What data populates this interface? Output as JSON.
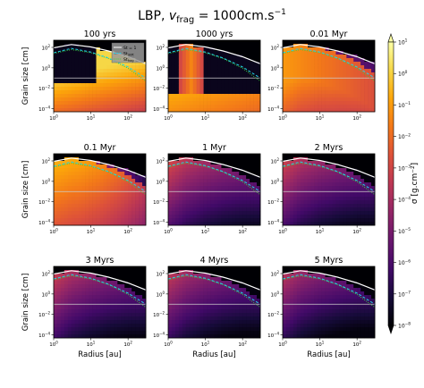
{
  "figure": {
    "suptitle_prefix": "LBP, ",
    "suptitle_sym": "v",
    "suptitle_sub": "frag",
    "suptitle_eq": " = 1000cm.s",
    "suptitle_sup": "−1",
    "ylabel": "Grain size [cm]",
    "xlabel": "Radius [au]"
  },
  "colorbar": {
    "label": "σ [g.cm⁻²]",
    "scale": "log",
    "range": [
      1e-08,
      10
    ],
    "colormap": "inferno",
    "ticks": [
      {
        "base": "10",
        "exp": "1"
      },
      {
        "base": "10",
        "exp": "0"
      },
      {
        "base": "10",
        "exp": "−1"
      },
      {
        "base": "10",
        "exp": "−2"
      },
      {
        "base": "10",
        "exp": "−3"
      },
      {
        "base": "10",
        "exp": "−4"
      },
      {
        "base": "10",
        "exp": "−5"
      },
      {
        "base": "10",
        "exp": "−6"
      },
      {
        "base": "10",
        "exp": "−7"
      },
      {
        "base": "10",
        "exp": "−8"
      }
    ]
  },
  "axes": {
    "xscale": "log",
    "yscale": "log",
    "xlim": [
      1,
      300
    ],
    "ylim": [
      5e-05,
      500
    ],
    "xticks": [
      {
        "base": "10",
        "exp": "0"
      },
      {
        "base": "10",
        "exp": "1"
      },
      {
        "base": "10",
        "exp": "2"
      }
    ],
    "yticks": [
      {
        "base": "10",
        "exp": "2"
      },
      {
        "base": "10",
        "exp": "0"
      },
      {
        "base": "10",
        "exp": "−2"
      },
      {
        "base": "10",
        "exp": "−4"
      }
    ],
    "ytick_values": [
      100,
      1,
      0.01,
      0.0001
    ],
    "xtick_values": [
      1,
      10,
      100
    ]
  },
  "legend": {
    "placement": "upper-right of first panel",
    "entries": [
      {
        "label_base": "St",
        "label_sub": "",
        "label_rest": " = 1",
        "color": "#ffffff",
        "style": "solid"
      },
      {
        "label_base": "St",
        "label_sub": "drift",
        "label_rest": "",
        "color": "#22d3e6",
        "style": "dashed"
      },
      {
        "label_base": "St",
        "label_sub": "frag",
        "label_rest": "",
        "color": "#3ad13a",
        "style": "dotted"
      }
    ]
  },
  "chart_data": {
    "type": "heatmap",
    "panels": [
      {
        "title": "100 yrs"
      },
      {
        "title": "1000 yrs"
      },
      {
        "title": "0.01 Myr"
      },
      {
        "title": "0.1 Myr"
      },
      {
        "title": "1 Myr"
      },
      {
        "title": "2 Myrs"
      },
      {
        "title": "3 Myrs"
      },
      {
        "title": "4 Myrs"
      },
      {
        "title": "5 Myrs"
      }
    ],
    "st1_curve": [
      [
        1,
        90
      ],
      [
        3,
        190
      ],
      [
        10,
        110
      ],
      [
        30,
        45
      ],
      [
        100,
        12
      ],
      [
        300,
        2.5
      ]
    ],
    "st_drift_curve": [
      [
        1,
        30
      ],
      [
        3,
        80
      ],
      [
        10,
        35
      ],
      [
        30,
        9
      ],
      [
        100,
        1.2
      ],
      [
        300,
        0.1
      ]
    ],
    "st_frag_curve": [
      [
        1,
        25
      ],
      [
        3,
        60
      ],
      [
        10,
        30
      ],
      [
        30,
        8
      ],
      [
        100,
        0.9
      ],
      [
        300,
        0.05
      ]
    ],
    "reference_line_grain_size": 0.1
  }
}
